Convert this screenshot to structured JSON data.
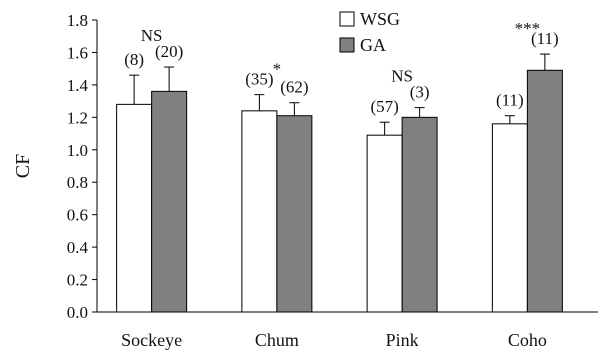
{
  "chart_data": {
    "type": "bar",
    "title": "",
    "xlabel": "",
    "ylabel": "CF",
    "ylim": [
      0.0,
      1.8
    ],
    "yticks": [
      "0.0",
      "0.2",
      "0.4",
      "0.6",
      "0.8",
      "1.0",
      "1.2",
      "1.4",
      "1.6",
      "1.8"
    ],
    "grid": false,
    "legend_position": "top-center",
    "categories": [
      "Sockeye",
      "Chum",
      "Pink",
      "Coho"
    ],
    "significance": [
      "NS",
      "*",
      "NS",
      "***"
    ],
    "series": [
      {
        "name": "WSG",
        "color": "#ffffff",
        "values": [
          1.28,
          1.24,
          1.09,
          1.16
        ],
        "errors": [
          0.18,
          0.1,
          0.08,
          0.05
        ],
        "n_labels": [
          "(8)",
          "(35)",
          "(57)",
          "(11)"
        ]
      },
      {
        "name": "GA",
        "color": "#808080",
        "values": [
          1.36,
          1.21,
          1.2,
          1.49
        ],
        "errors": [
          0.15,
          0.08,
          0.06,
          0.1
        ],
        "n_labels": [
          "(20)",
          "(62)",
          "(3)",
          "(11)"
        ]
      }
    ]
  }
}
